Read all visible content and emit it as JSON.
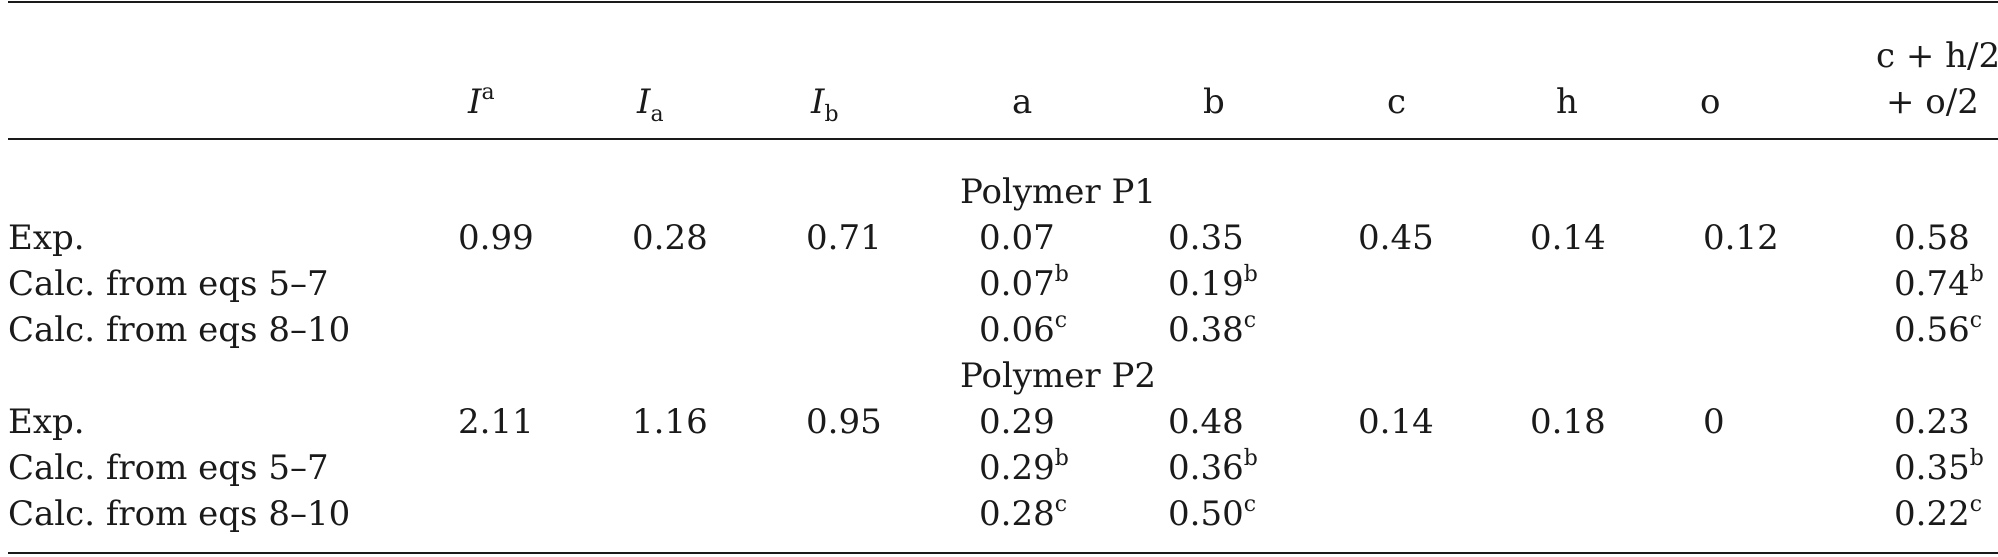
{
  "header": {
    "col_I": "I",
    "col_I_sup": "a",
    "col_Ia": "I",
    "col_Ia_sub": "a",
    "col_Ib": "I",
    "col_Ib_sub": "b",
    "col_a": "a",
    "col_b": "b",
    "col_c": "c",
    "col_h": "h",
    "col_o": "o",
    "col_last_line1": "c + h/2",
    "col_last_line2": "+ o/2"
  },
  "sections": [
    {
      "title": "Polymer P1",
      "rows": [
        {
          "label": "Exp.",
          "I": "0.99",
          "Ia": "0.28",
          "Ib": "0.71",
          "a": "0.07",
          "a_sup": "",
          "b": "0.35",
          "b_sup": "",
          "c": "0.45",
          "h": "0.14",
          "o": "0.12",
          "last": "0.58",
          "last_sup": ""
        },
        {
          "label": "Calc. from eqs 5–7",
          "I": "",
          "Ia": "",
          "Ib": "",
          "a": "0.07",
          "a_sup": "b",
          "b": "0.19",
          "b_sup": "b",
          "c": "",
          "h": "",
          "o": "",
          "last": "0.74",
          "last_sup": "b"
        },
        {
          "label": "Calc. from eqs 8–10",
          "I": "",
          "Ia": "",
          "Ib": "",
          "a": "0.06",
          "a_sup": "c",
          "b": "0.38",
          "b_sup": "c",
          "c": "",
          "h": "",
          "o": "",
          "last": "0.56",
          "last_sup": "c"
        }
      ]
    },
    {
      "title": "Polymer P2",
      "rows": [
        {
          "label": "Exp.",
          "I": "2.11",
          "Ia": "1.16",
          "Ib": "0.95",
          "a": "0.29",
          "a_sup": "",
          "b": "0.48",
          "b_sup": "",
          "c": "0.14",
          "h": "0.18",
          "o": "0",
          "last": "0.23",
          "last_sup": ""
        },
        {
          "label": "Calc. from eqs 5–7",
          "I": "",
          "Ia": "",
          "Ib": "",
          "a": "0.29",
          "a_sup": "b",
          "b": "0.36",
          "b_sup": "b",
          "c": "",
          "h": "",
          "o": "",
          "last": "0.35",
          "last_sup": "b"
        },
        {
          "label": "Calc. from eqs 8–10",
          "I": "",
          "Ia": "",
          "Ib": "",
          "a": "0.28",
          "a_sup": "c",
          "b": "0.50",
          "b_sup": "c",
          "c": "",
          "h": "",
          "o": "",
          "last": "0.22",
          "last_sup": "c"
        }
      ]
    }
  ]
}
